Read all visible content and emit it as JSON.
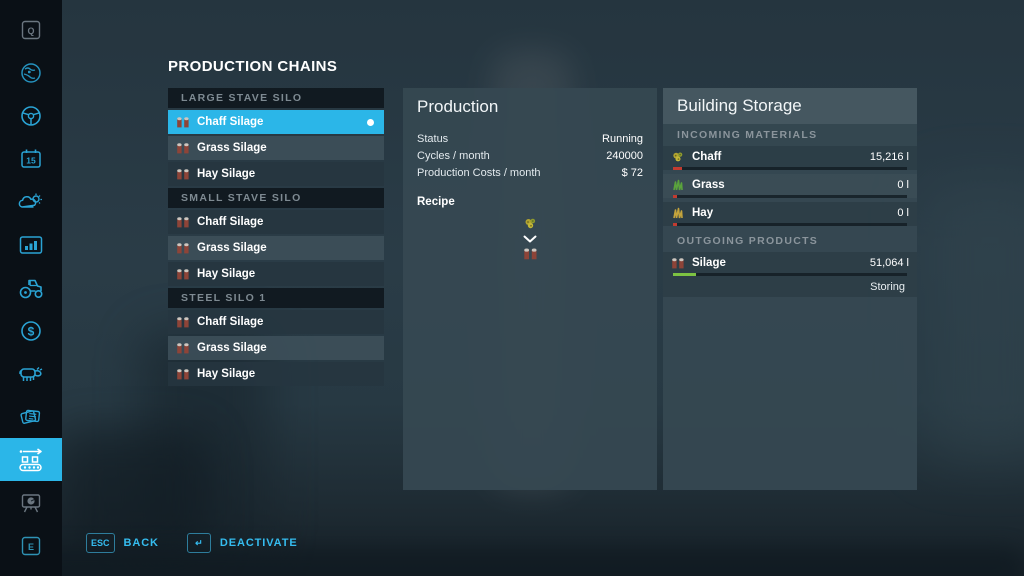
{
  "page_title": "PRODUCTION CHAINS",
  "colors": {
    "accent": "#2bb6e8",
    "bar_red": "#c23b30",
    "bar_green": "#7dc242",
    "sidebar_bg": "#0a1016"
  },
  "sidebar": {
    "active_item": "production-chains",
    "keys": {
      "top": "Q",
      "calendar_day": "15",
      "bottom": "E"
    },
    "icons": [
      "q-key",
      "map-globe",
      "steering-wheel",
      "calendar",
      "weather",
      "statistics",
      "garage-tractor",
      "finances",
      "animals",
      "contracts",
      "production-chains",
      "presentation-board",
      "e-key"
    ]
  },
  "chain_list": {
    "sections": [
      {
        "header": "LARGE STAVE SILO",
        "items": [
          {
            "label": "Chaff Silage",
            "selected": true
          },
          {
            "label": "Grass Silage"
          },
          {
            "label": "Hay Silage"
          }
        ]
      },
      {
        "header": "SMALL STAVE SILO",
        "items": [
          {
            "label": "Chaff Silage"
          },
          {
            "label": "Grass Silage"
          },
          {
            "label": "Hay Silage"
          }
        ]
      },
      {
        "header": "STEEL SILO 1",
        "items": [
          {
            "label": "Chaff Silage"
          },
          {
            "label": "Grass Silage"
          },
          {
            "label": "Hay Silage"
          }
        ]
      }
    ]
  },
  "production_panel": {
    "title": "Production",
    "rows": [
      {
        "label": "Status",
        "value": "Running"
      },
      {
        "label": "Cycles / month",
        "value": "240000"
      },
      {
        "label": "Production Costs / month",
        "value": "$ 72"
      }
    ],
    "recipe_label": "Recipe",
    "recipe": {
      "input_icon": "chaff-icon",
      "output_icon": "silo-silage-icon"
    }
  },
  "storage_panel": {
    "title": "Building Storage",
    "incoming_header": "INCOMING MATERIALS",
    "incoming": [
      {
        "name": "Chaff",
        "amount": "15,216 l",
        "fill_pct": 4,
        "bar_color": "red",
        "icon": "chaff-icon"
      },
      {
        "name": "Grass",
        "amount": "0 l",
        "fill_pct": 1.5,
        "bar_color": "red",
        "icon": "grass-icon"
      },
      {
        "name": "Hay",
        "amount": "0 l",
        "fill_pct": 1.5,
        "bar_color": "red",
        "icon": "hay-icon"
      }
    ],
    "outgoing_header": "OUTGOING PRODUCTS",
    "outgoing": [
      {
        "name": "Silage",
        "amount": "51,064 l",
        "fill_pct": 10,
        "bar_color": "green",
        "status": "Storing",
        "icon": "silo-silage-icon"
      }
    ]
  },
  "bottom_bar": {
    "back": {
      "key": "ESC",
      "label": "BACK"
    },
    "deactivate": {
      "key": "↵",
      "label": "DEACTIVATE"
    }
  }
}
